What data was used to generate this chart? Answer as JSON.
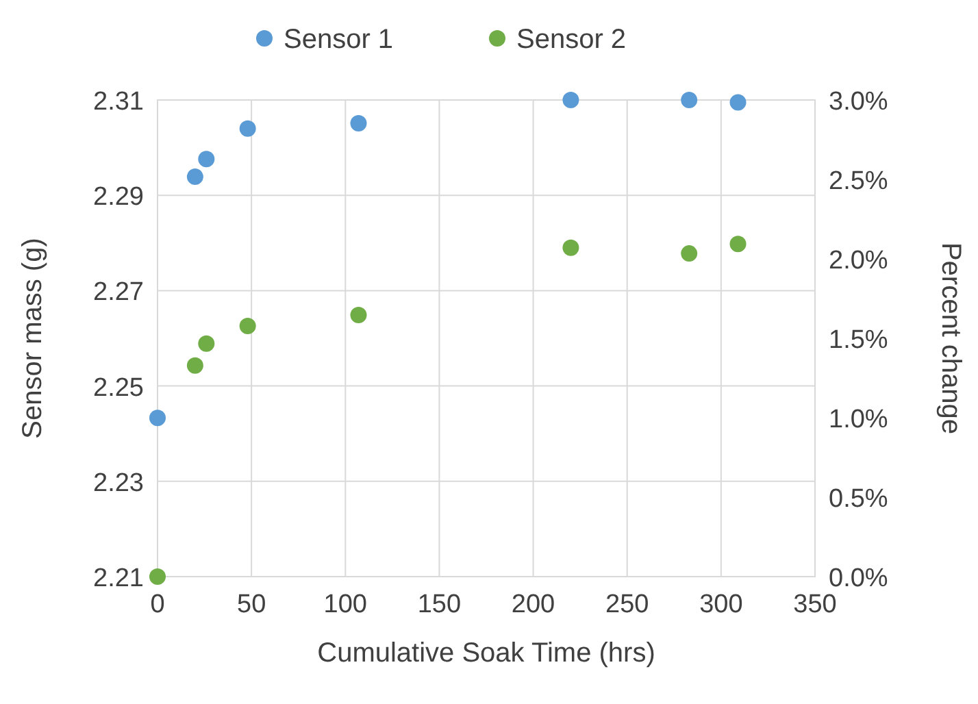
{
  "chart_data": {
    "type": "scatter",
    "xlabel": "Cumulative Soak Time (hrs)",
    "ylabel": "Sensor mass (g)",
    "y2label": "Percent change",
    "xlim": [
      0,
      350
    ],
    "xticks": [
      0,
      50,
      100,
      150,
      200,
      250,
      300,
      350
    ],
    "ylim": [
      2.21,
      2.31
    ],
    "yticks": [
      2.21,
      2.23,
      2.25,
      2.27,
      2.29,
      2.31
    ],
    "y2lim": [
      0,
      3
    ],
    "y2ticks": [
      {
        "value": 0,
        "label": "0.0%"
      },
      {
        "value": 0.5,
        "label": "0.5%"
      },
      {
        "value": 1,
        "label": "1.0%"
      },
      {
        "value": 1.5,
        "label": "1.5%"
      },
      {
        "value": 2,
        "label": "2.0%"
      },
      {
        "value": 2.5,
        "label": "2.5%"
      },
      {
        "value": 3,
        "label": "3.0%"
      }
    ],
    "grid": true,
    "legend": "top",
    "marker": "circle",
    "x": [
      0,
      20,
      26,
      48,
      107,
      220,
      283,
      309
    ],
    "series": [
      {
        "name": "Sensor 1",
        "color": "#5b9bd5",
        "values": [
          2.2433,
          2.2939,
          2.2976,
          2.304,
          2.3051,
          2.31,
          2.31,
          2.3095
        ]
      },
      {
        "name": "Sensor 2",
        "color": "#70ad47",
        "values": [
          2.21,
          2.2543,
          2.2589,
          2.2626,
          2.2649,
          2.279,
          2.2778,
          2.2798
        ]
      }
    ]
  }
}
